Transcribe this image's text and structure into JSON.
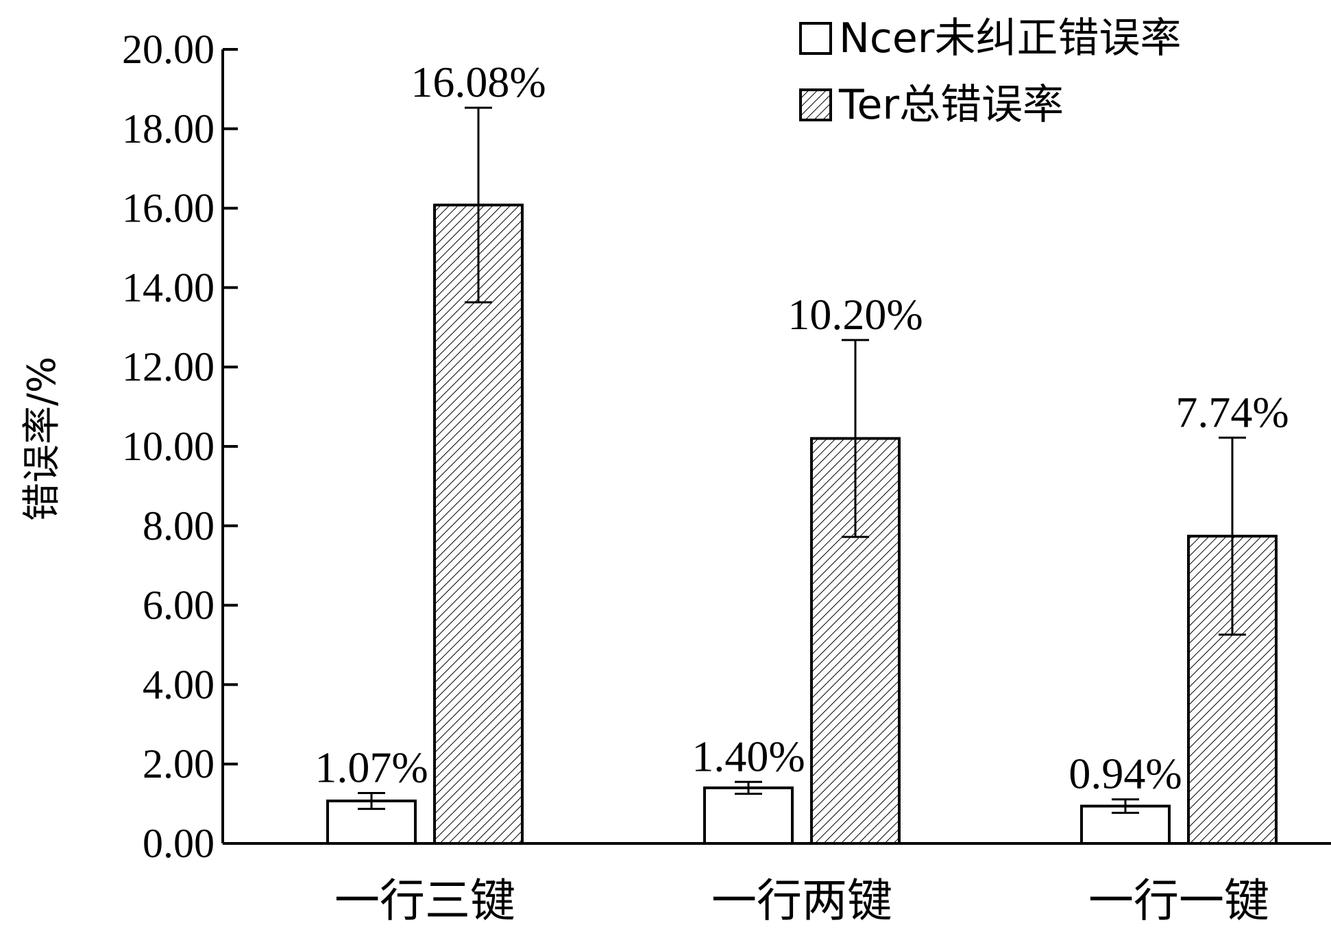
{
  "chart_data": {
    "type": "bar",
    "categories": [
      "一行三键",
      "一行两键",
      "一行一键"
    ],
    "series": [
      {
        "name": "Ncer未纠正错误率",
        "values": [
          1.07,
          1.4,
          0.94
        ],
        "error": [
          0.2,
          0.15,
          0.17
        ],
        "labels": [
          "1.07%",
          "1.40%",
          "0.94%"
        ],
        "fill": "#ffffff",
        "pattern": "none"
      },
      {
        "name": "Ter总错误率",
        "values": [
          16.08,
          10.2,
          7.74
        ],
        "error": [
          2.45,
          2.48,
          2.48
        ],
        "labels": [
          "16.08%",
          "10.20%",
          "7.74%"
        ],
        "fill": "#ffffff",
        "pattern": "diagonal-hatch"
      }
    ],
    "ylabel": "错误率/%",
    "xlabel": "",
    "ylim": [
      0,
      20
    ],
    "yticks": [
      "0.00",
      "2.00",
      "4.00",
      "6.00",
      "8.00",
      "10.00",
      "12.00",
      "14.00",
      "16.00",
      "18.00",
      "20.00"
    ],
    "legend_position": "top-right",
    "grid": false,
    "colors": {
      "stroke": "#000000",
      "background": "#ffffff"
    }
  }
}
